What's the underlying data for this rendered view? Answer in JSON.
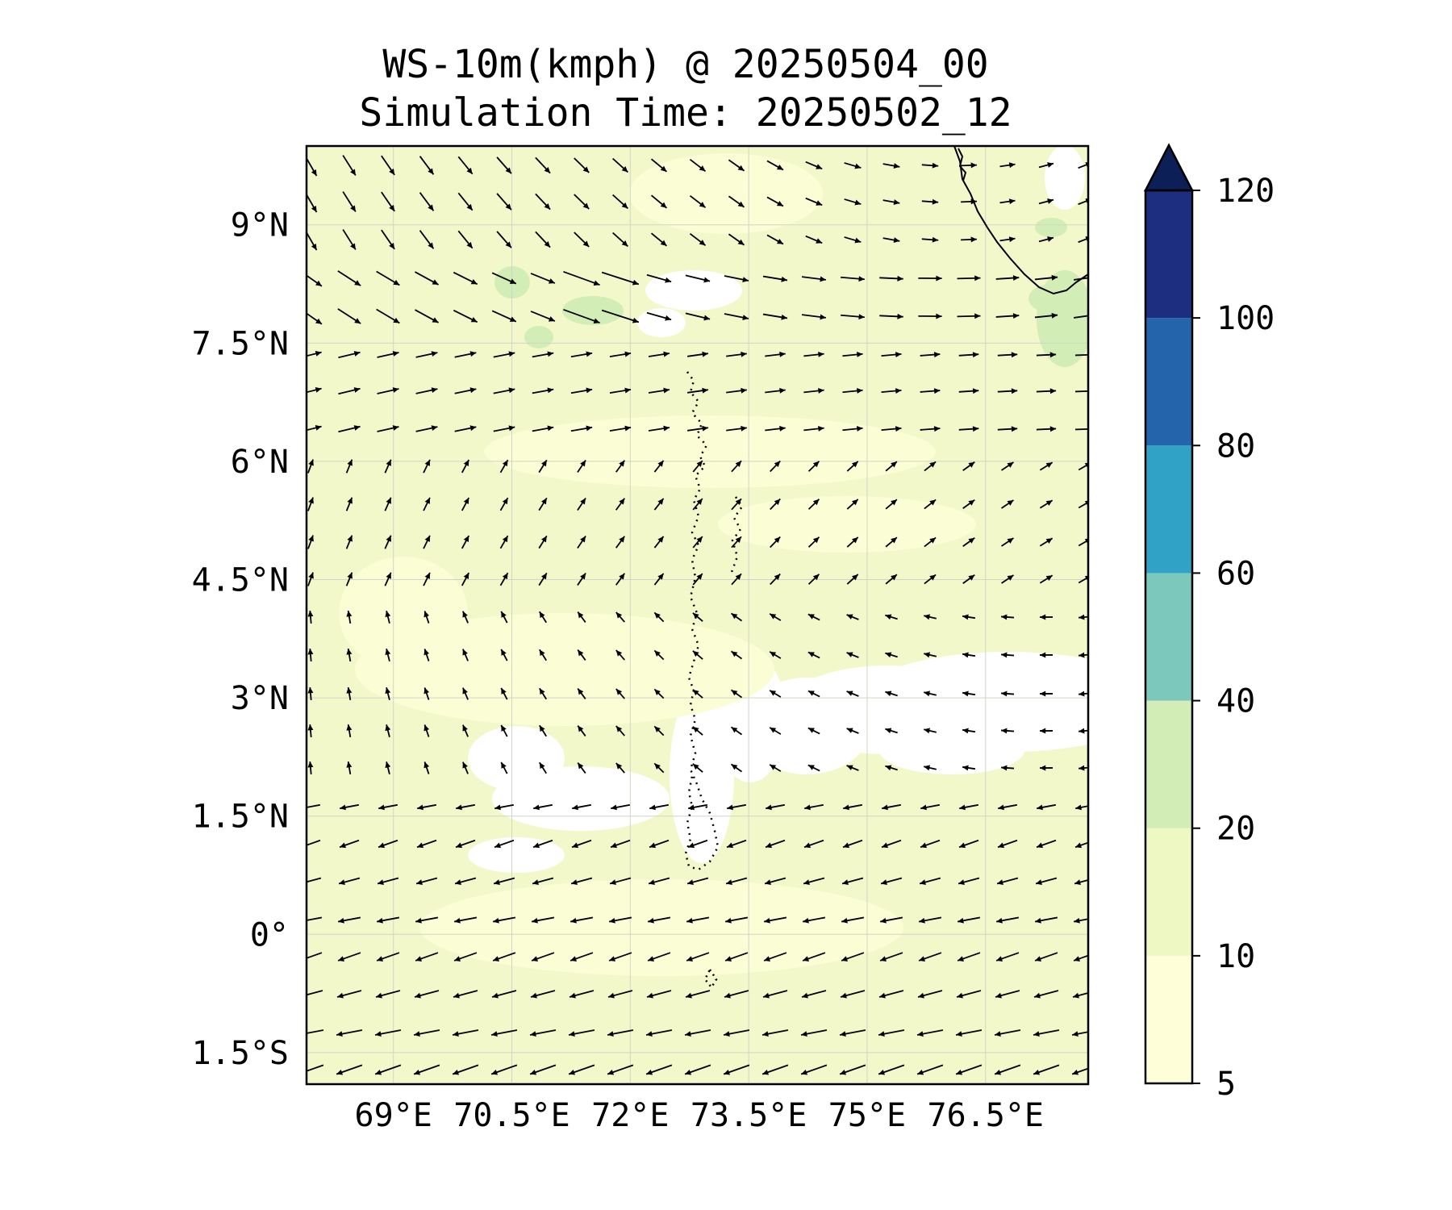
{
  "figure": {
    "title": "WS-10m(kmph) @ 20250504_00",
    "subtitle": "Simulation Time: 20250502_12"
  },
  "map": {
    "lat_range": [
      -1.9,
      10
    ],
    "lon_range": [
      67.9,
      77.8
    ],
    "lat_ticks": [
      {
        "value": 9,
        "label": "9°N"
      },
      {
        "value": 7.5,
        "label": "7.5°N"
      },
      {
        "value": 6,
        "label": "6°N"
      },
      {
        "value": 4.5,
        "label": "4.5°N"
      },
      {
        "value": 3,
        "label": "3°N"
      },
      {
        "value": 1.5,
        "label": "1.5°N"
      },
      {
        "value": 0,
        "label": "0°"
      },
      {
        "value": -1.5,
        "label": "1.5°S"
      }
    ],
    "lon_ticks": [
      {
        "value": 69,
        "label": "69°E"
      },
      {
        "value": 70.5,
        "label": "70.5°E"
      },
      {
        "value": 72,
        "label": "72°E"
      },
      {
        "value": 73.5,
        "label": "73.5°E"
      },
      {
        "value": 75,
        "label": "75°E"
      },
      {
        "value": 76.5,
        "label": "76.5°E"
      }
    ],
    "background_color": "#f2f8ca",
    "calm_color": "#ffffff",
    "light_color": "#fbfdd5",
    "stronger_color": "#d2edb5"
  },
  "colorbar": {
    "levels": [
      5,
      10,
      20,
      40,
      60,
      80,
      100,
      120
    ],
    "tick_labels": [
      "5",
      "10",
      "20",
      "40",
      "60",
      "80",
      "100",
      "120"
    ],
    "colors": [
      "#feffd8",
      "#eef8c3",
      "#d2edb5",
      "#7cc8bc",
      "#2fa2c6",
      "#2464ab",
      "#1d2e80"
    ],
    "extend_color": "#0c1f56"
  }
}
